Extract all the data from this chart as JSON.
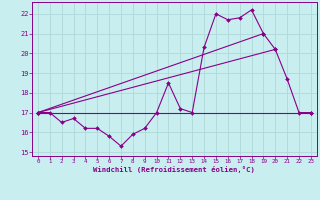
{
  "xlabel": "Windchill (Refroidissement éolien,°C)",
  "xlim": [
    -0.5,
    23.5
  ],
  "ylim": [
    14.8,
    22.6
  ],
  "yticks": [
    15,
    16,
    17,
    18,
    19,
    20,
    21,
    22
  ],
  "xticks": [
    0,
    1,
    2,
    3,
    4,
    5,
    6,
    7,
    8,
    9,
    10,
    11,
    12,
    13,
    14,
    15,
    16,
    17,
    18,
    19,
    20,
    21,
    22,
    23
  ],
  "bg_color": "#c8eef0",
  "grid_color": "#b0d8d8",
  "line_color": "#880088",
  "line1_x": [
    0,
    1,
    2,
    3,
    4,
    5,
    6,
    7,
    8,
    9,
    10,
    11,
    12,
    13,
    14,
    15,
    16,
    17,
    18,
    19,
    20,
    21,
    22,
    23
  ],
  "line1_y": [
    17.0,
    17.0,
    16.5,
    16.7,
    16.2,
    16.2,
    15.8,
    15.3,
    15.9,
    16.2,
    17.0,
    18.5,
    17.2,
    17.0,
    20.3,
    22.0,
    21.7,
    21.8,
    22.2,
    21.0,
    20.2,
    18.7,
    17.0,
    17.0
  ],
  "line2_x": [
    0,
    23
  ],
  "line2_y": [
    17.0,
    17.0
  ],
  "line3_x": [
    0,
    20
  ],
  "line3_y": [
    17.0,
    20.2
  ],
  "line4_x": [
    0,
    19
  ],
  "line4_y": [
    17.0,
    21.0
  ]
}
